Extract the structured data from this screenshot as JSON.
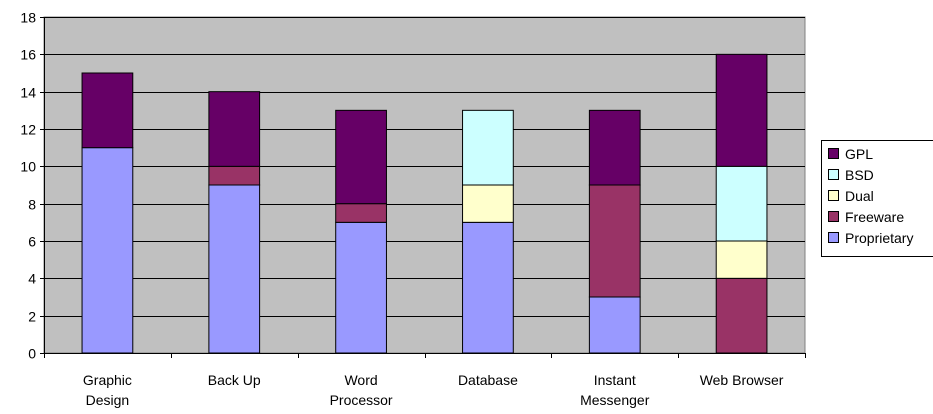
{
  "chart_data": {
    "type": "bar",
    "stacked": true,
    "title": "",
    "xlabel": "",
    "ylabel": "",
    "ylim": [
      0,
      18
    ],
    "yticks": [
      0,
      2,
      4,
      6,
      8,
      10,
      12,
      14,
      16,
      18
    ],
    "grid": true,
    "legend_position": "right",
    "plot_background": "#c0c0c0",
    "categories": [
      [
        "Graphic",
        "Design"
      ],
      [
        "Back Up"
      ],
      [
        "Word",
        "Processor"
      ],
      [
        "Database"
      ],
      [
        "Instant",
        "Messenger"
      ],
      [
        "Web Browser"
      ]
    ],
    "series": [
      {
        "name": "Proprietary",
        "color": "#9999ff",
        "values": [
          11,
          9,
          7,
          7,
          3,
          0
        ]
      },
      {
        "name": "Freeware",
        "color": "#993366",
        "values": [
          0,
          1,
          1,
          0,
          6,
          4
        ]
      },
      {
        "name": "Dual",
        "color": "#ffffcc",
        "values": [
          0,
          0,
          0,
          2,
          0,
          2
        ]
      },
      {
        "name": "BSD",
        "color": "#ccffff",
        "values": [
          0,
          0,
          0,
          4,
          0,
          4
        ]
      },
      {
        "name": "GPL",
        "color": "#660066",
        "values": [
          4,
          4,
          5,
          0,
          4,
          6
        ]
      }
    ]
  }
}
